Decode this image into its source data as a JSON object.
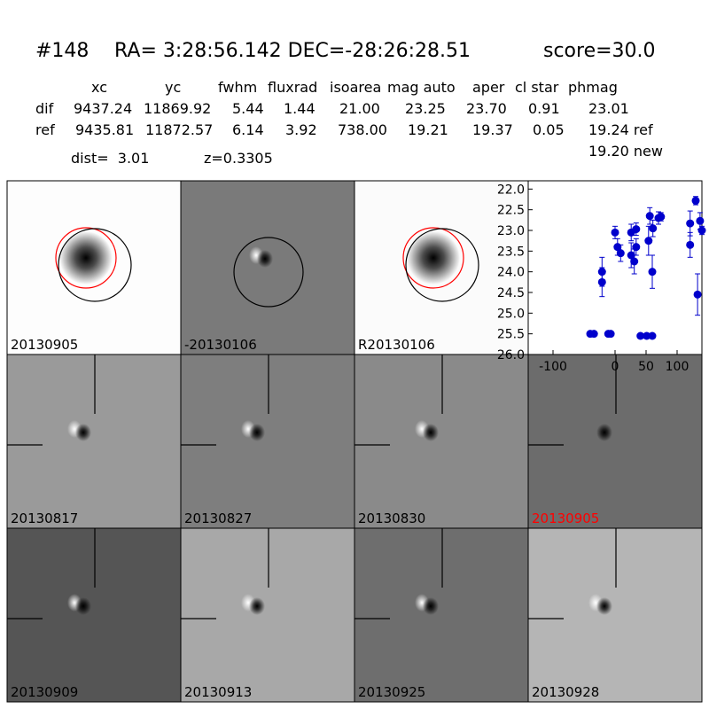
{
  "header": {
    "id": "#148",
    "coords": "RA= 3:28:56.142 DEC=-28:26:28.51",
    "score": "score=30.0"
  },
  "table": {
    "columns": [
      "xc",
      "yc",
      "fwhm",
      "fluxrad",
      "isoarea",
      "mag auto",
      "aper",
      "cl star",
      "phmag"
    ],
    "rows": [
      [
        "dif",
        "9437.24",
        "11869.92",
        "5.44",
        "1.44",
        "21.00",
        "23.25",
        "23.70",
        "0.91",
        "23.01"
      ],
      [
        "ref",
        "9435.81",
        "11872.57",
        "6.14",
        "3.92",
        "738.00",
        "19.21",
        "19.37",
        "0.05",
        "19.24 ref"
      ]
    ],
    "extra": "19.20 new"
  },
  "dist": "dist=  3.01",
  "z": "z=0.3305",
  "panels": [
    {
      "label": "20130905"
    },
    {
      "label": "-20130106"
    },
    {
      "label": "R20130106"
    },
    {
      "label": "20130817"
    },
    {
      "label": "20130827"
    },
    {
      "label": "20130830"
    },
    {
      "label": "20130905",
      "color": "#ff0000"
    },
    {
      "label": "20130909"
    },
    {
      "label": "20130913"
    },
    {
      "label": "20130925"
    },
    {
      "label": "20130928"
    }
  ],
  "chart_data": {
    "type": "scatter",
    "xlim": [
      -140,
      140
    ],
    "xticks": [
      -100,
      0,
      50,
      100
    ],
    "ylim": [
      21.8,
      26.0
    ],
    "y_inverted": true,
    "yticks": [
      {
        "value": 22.0,
        "label": "22.0"
      },
      22.5,
      {
        "value": 23.0,
        "label": "23.0"
      },
      23.5,
      {
        "value": 24.0,
        "label": "24.0"
      },
      24.5,
      {
        "value": 25.0,
        "label": "25.0"
      },
      25.5,
      {
        "value": 26.0,
        "label": "26.0"
      }
    ],
    "series": [
      {
        "color": "#0000cc",
        "x": [
          -40,
          -34,
          -11,
          -7,
          -21,
          -21,
          0,
          4,
          9,
          26,
          26,
          31,
          34,
          34,
          41,
          51,
          60,
          54,
          56,
          60,
          61,
          70,
          74,
          121,
          121,
          130,
          133,
          137,
          140
        ],
        "values": [
          25.5,
          25.5,
          25.5,
          25.5,
          24.0,
          24.25,
          23.05,
          23.4,
          23.55,
          23.05,
          23.6,
          23.75,
          22.97,
          23.4,
          25.55,
          25.55,
          25.55,
          23.25,
          22.65,
          24.0,
          22.95,
          22.7,
          22.67,
          22.83,
          23.35,
          22.28,
          24.55,
          22.77,
          23.0
        ],
        "errors": [
          0.05,
          0.05,
          0.05,
          0.05,
          0.35,
          0.35,
          0.15,
          0.2,
          0.2,
          0.2,
          0.3,
          0.3,
          0.15,
          0.2,
          0.05,
          0.05,
          0.05,
          0.35,
          0.2,
          0.4,
          0.2,
          0.15,
          0.1,
          0.3,
          0.3,
          0.1,
          0.5,
          0.2,
          0.1
        ]
      }
    ]
  }
}
